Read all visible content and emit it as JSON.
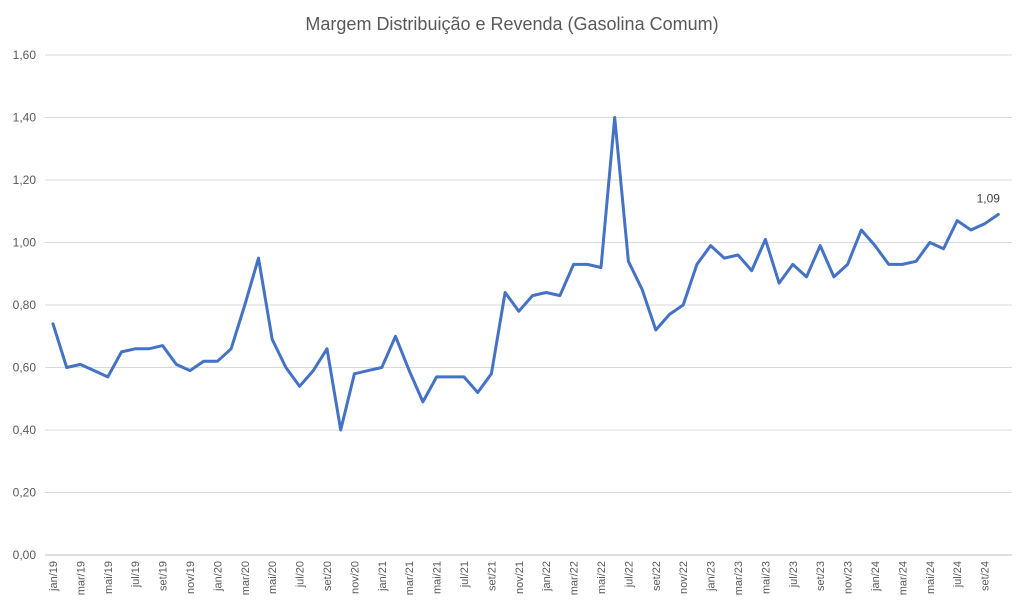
{
  "chart_data": {
    "type": "line",
    "title": "Margem Distribuição e Revenda (Gasolina Comum)",
    "xlabel": "",
    "ylabel": "",
    "ylim": [
      0,
      1.6
    ],
    "yticks": [
      "0,00",
      "0,20",
      "0,40",
      "0,60",
      "0,80",
      "1,00",
      "1,20",
      "1,40",
      "1,60"
    ],
    "grid": "horizontal",
    "line_color": "#4472C4",
    "x": [
      "jan/19",
      "fev/19",
      "mar/19",
      "abr/19",
      "mai/19",
      "jun/19",
      "jul/19",
      "ago/19",
      "set/19",
      "out/19",
      "nov/19",
      "dez/19",
      "jan/20",
      "fev/20",
      "mar/20",
      "abr/20",
      "mai/20",
      "jun/20",
      "jul/20",
      "ago/20",
      "set/20",
      "out/20",
      "nov/20",
      "dez/20",
      "jan/21",
      "fev/21",
      "mar/21",
      "abr/21",
      "mai/21",
      "jun/21",
      "jul/21",
      "ago/21",
      "set/21",
      "out/21",
      "nov/21",
      "dez/21",
      "jan/22",
      "fev/22",
      "mar/22",
      "abr/22",
      "mai/22",
      "jun/22",
      "jul/22",
      "ago/22",
      "set/22",
      "out/22",
      "nov/22",
      "dez/22",
      "jan/23",
      "fev/23",
      "mar/23",
      "abr/23",
      "mai/23",
      "jun/23",
      "jul/23",
      "ago/23",
      "set/23",
      "out/23",
      "nov/23",
      "dez/23",
      "jan/24",
      "fev/24",
      "mar/24",
      "abr/24",
      "mai/24",
      "jun/24",
      "jul/24",
      "ago/24",
      "set/24",
      "out/24"
    ],
    "x_tick_labels": [
      "jan/19",
      "mar/19",
      "mai/19",
      "jul/19",
      "set/19",
      "nov/19",
      "jan/20",
      "mar/20",
      "mai/20",
      "jul/20",
      "set/20",
      "nov/20",
      "jan/21",
      "mar/21",
      "mai/21",
      "jul/21",
      "set/21",
      "nov/21",
      "jan/22",
      "mar/22",
      "mai/22",
      "jul/22",
      "set/22",
      "nov/22",
      "jan/23",
      "mar/23",
      "mai/23",
      "jul/23",
      "set/23",
      "nov/23",
      "jan/24",
      "mar/24",
      "mai/24",
      "jul/24",
      "set/24"
    ],
    "series": [
      {
        "values": [
          0.74,
          0.6,
          0.61,
          0.59,
          0.57,
          0.65,
          0.66,
          0.66,
          0.67,
          0.61,
          0.59,
          0.62,
          0.62,
          0.66,
          0.8,
          0.95,
          0.69,
          0.6,
          0.54,
          0.59,
          0.66,
          0.4,
          0.58,
          0.59,
          0.6,
          0.7,
          0.59,
          0.49,
          0.57,
          0.57,
          0.57,
          0.52,
          0.58,
          0.84,
          0.78,
          0.83,
          0.84,
          0.83,
          0.93,
          0.93,
          0.92,
          1.4,
          0.94,
          0.85,
          0.72,
          0.77,
          0.8,
          0.93,
          0.99,
          0.95,
          0.96,
          0.91,
          1.01,
          0.87,
          0.93,
          0.89,
          0.99,
          0.89,
          0.93,
          1.04,
          0.99,
          0.93,
          0.93,
          0.94,
          1.0,
          0.98,
          1.07,
          1.04,
          1.06,
          1.09
        ]
      }
    ],
    "annotations": [
      {
        "label": "1,09",
        "x": "out/24",
        "y": 1.09
      }
    ]
  }
}
